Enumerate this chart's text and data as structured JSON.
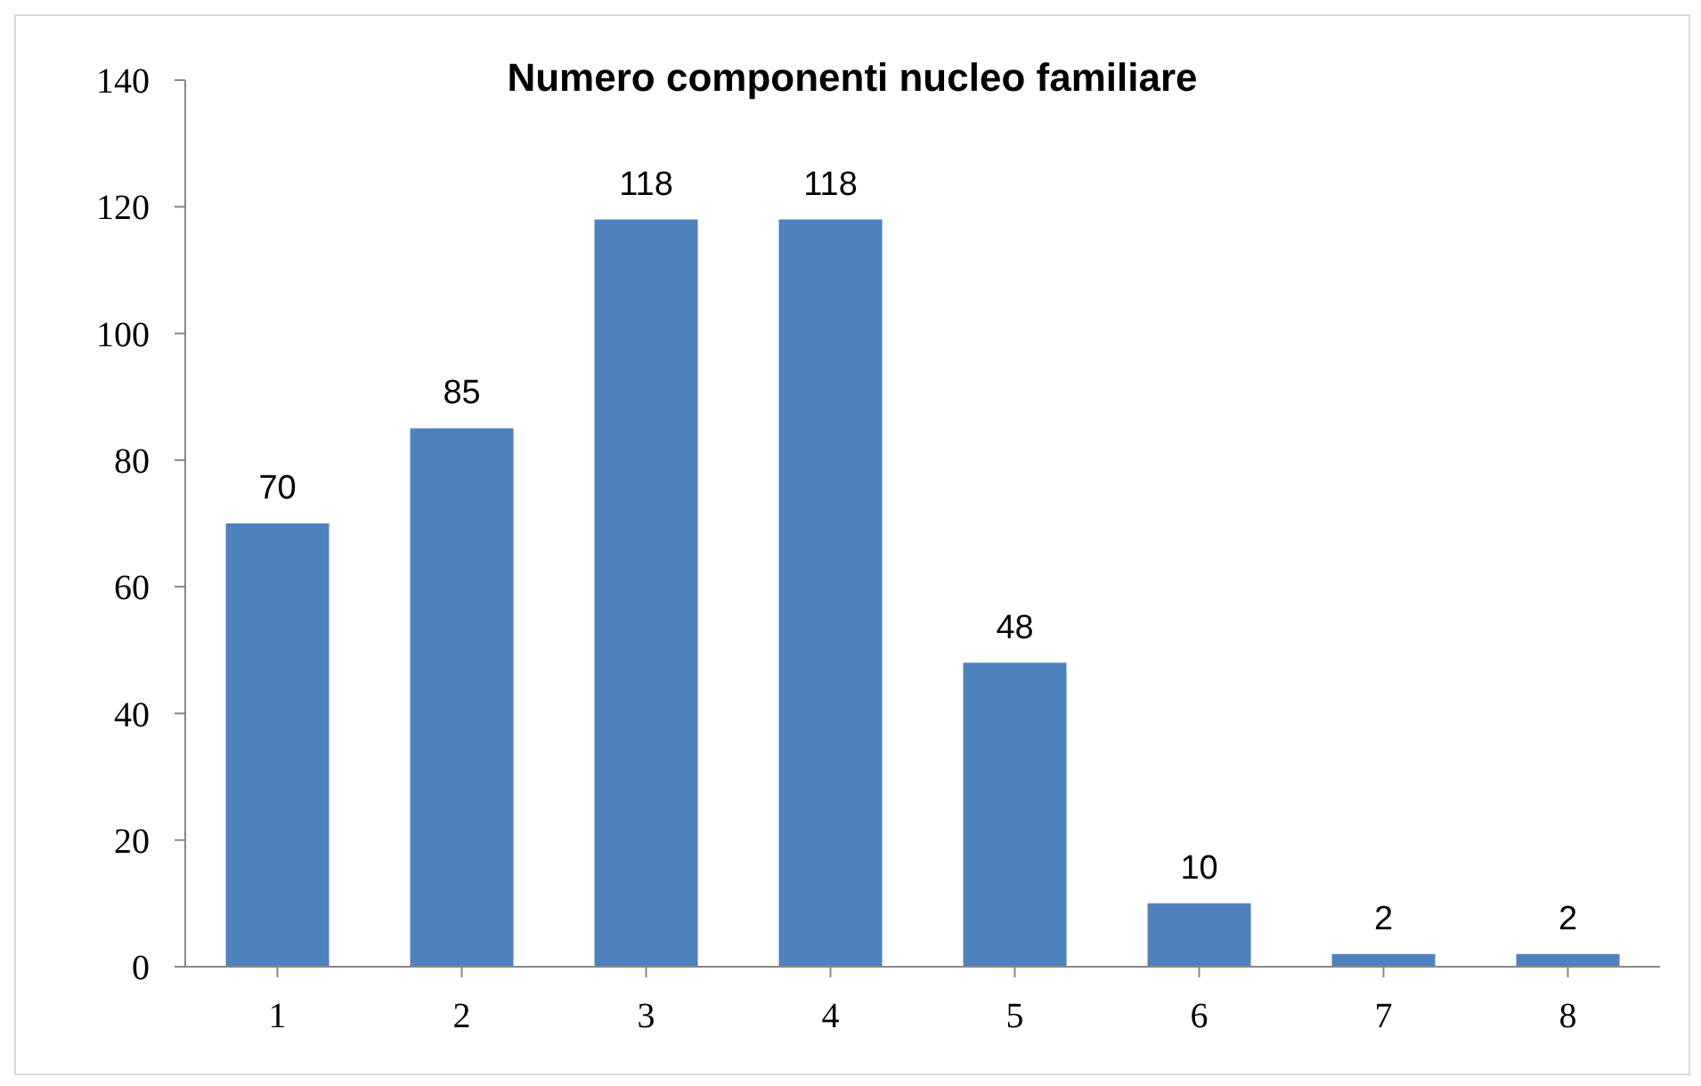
{
  "chart_data": {
    "type": "bar",
    "title": "Numero componenti nucleo familiare",
    "categories": [
      "1",
      "2",
      "3",
      "4",
      "5",
      "6",
      "7",
      "8"
    ],
    "values": [
      70,
      85,
      118,
      118,
      48,
      10,
      2,
      2
    ],
    "color": "#4f81bd",
    "ylim": [
      0,
      140
    ],
    "yticks": [
      0,
      20,
      40,
      60,
      80,
      100,
      120,
      140
    ],
    "grid": false,
    "legend": false,
    "data_labels": true
  }
}
